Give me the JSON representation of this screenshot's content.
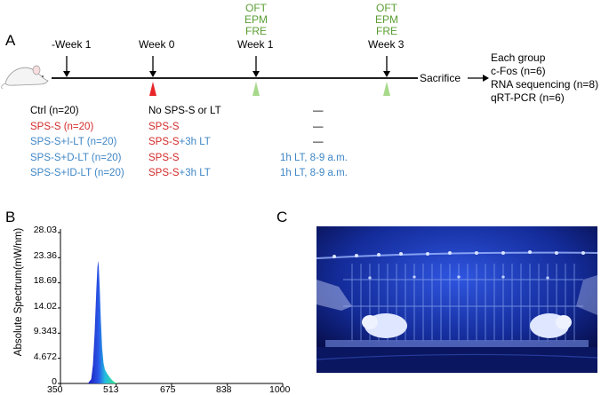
{
  "panel_labels": {
    "a": "A",
    "b": "B",
    "c": "C"
  },
  "timeline": {
    "labels": [
      "-Week 1",
      "Week 0",
      "Week 1",
      "Week 3"
    ],
    "tests_week1": [
      "OFT",
      "EPM",
      "FRE"
    ],
    "tests_week3": [
      "OFT",
      "EPM",
      "FRE"
    ],
    "endpoint": "Sacrifice",
    "marker_colors": {
      "red": "#e8262a",
      "green": "#a8d98b"
    }
  },
  "outcomes": {
    "title": "Each group",
    "items": [
      "c-Fos (n=6)",
      "RNA sequencing (n=8)",
      "qRT-PCR (n=6)"
    ]
  },
  "groups": [
    {
      "name": "Ctrl (n=20)",
      "week0": "No SPS-S or LT",
      "week1": "—"
    },
    {
      "name": "SPS-S (n=20)",
      "week0": "SPS-S",
      "week1": "—"
    },
    {
      "name": "SPS-S+I-LT (n=20)",
      "week0_a": "SPS-S",
      "week0_b": "+3h LT",
      "week1": "—"
    },
    {
      "name": "SPS-S+D-LT (n=20)",
      "week0": "SPS-S",
      "week1": "1h LT, 8-9 a.m."
    },
    {
      "name": "SPS-S+ID-LT (n=20)",
      "week0_a": "SPS-S",
      "week0_b": "+3h LT",
      "week1": "1h LT, 8-9 a.m."
    }
  ],
  "chart_data": {
    "type": "area",
    "ylabel": "Absolute Spectrum(mW/nm)",
    "xlabel": "",
    "yticks": [
      "28.03",
      "23.36",
      "18.69",
      "14.02",
      "9.343",
      "4.672",
      "0"
    ],
    "xticks": [
      "350",
      "513",
      "675",
      "838",
      "1000"
    ],
    "xlim": [
      350,
      1000
    ],
    "ylim": [
      0,
      28.03
    ],
    "x": [
      430,
      440,
      445,
      450,
      455,
      458,
      460,
      462,
      465,
      468,
      472,
      476,
      480,
      485,
      490,
      495,
      500,
      505,
      510,
      515,
      520
    ],
    "y": [
      0,
      0.8,
      3.5,
      9.5,
      17.5,
      21.5,
      22.8,
      21.8,
      17.5,
      12,
      6.5,
      3.8,
      2.6,
      2.0,
      1.5,
      1.1,
      0.7,
      0.4,
      0.2,
      0.05,
      0
    ],
    "colors": {
      "peak": "#2040d8",
      "tail": "#2fe07a"
    }
  },
  "photo": {
    "bg": "#0a1a6a",
    "glow": "#3a5cff"
  }
}
